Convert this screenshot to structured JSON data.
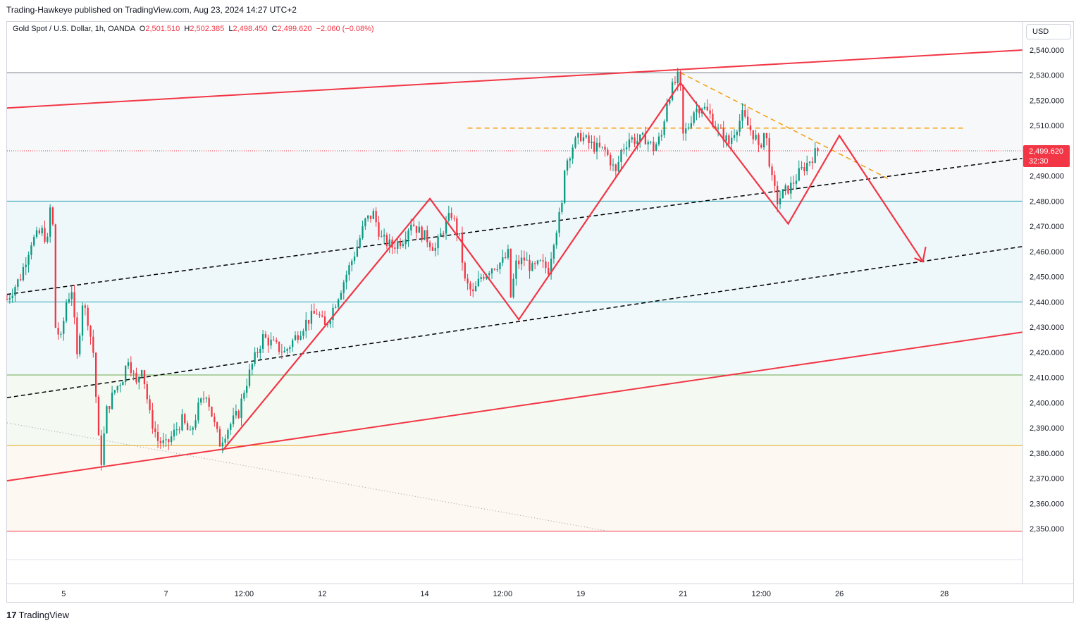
{
  "header": {
    "published_line": "Trading-Hawkeye published on TradingView.com, Aug 23, 2024 14:27 UTC+2"
  },
  "legend": {
    "symbol": "Gold Spot / U.S. Dollar, 1h, OANDA",
    "o_label": "O",
    "o_value": "2,501.510",
    "h_label": "H",
    "h_value": "2,502.385",
    "l_label": "L",
    "l_value": "2,498.450",
    "c_label": "C",
    "c_value": "2,499.620",
    "change": "−2.060 (−0.08%)"
  },
  "axis": {
    "currency_button": "USD",
    "current_price": "2,499.620",
    "countdown": "32:30"
  },
  "footer": {
    "logo_mark": "17",
    "logo_text": "TradingView"
  },
  "colors": {
    "up": "#089981",
    "down": "#f23645",
    "pattern": "#f23645",
    "channel": "#f23645",
    "dashed_mid": "#000000",
    "orange_dashed": "#f59e0b",
    "teal_line": "#26a3b5",
    "green_line": "#6aa84f",
    "gold_line": "#e6a817"
  },
  "chart_data": {
    "type": "candlestick",
    "symbol": "XAUUSD",
    "timeframe": "1h",
    "ylim": [
      2345,
      2545
    ],
    "y_ticks": [
      "2,350.000",
      "2,360.000",
      "2,370.000",
      "2,380.000",
      "2,390.000",
      "2,400.000",
      "2,410.000",
      "2,420.000",
      "2,430.000",
      "2,440.000",
      "2,450.000",
      "2,460.000",
      "2,470.000",
      "2,480.000",
      "2,490.000",
      "2,500.000",
      "2,510.000",
      "2,520.000",
      "2,530.000",
      "2,540.000"
    ],
    "y_tick_values": [
      2350,
      2360,
      2370,
      2380,
      2390,
      2400,
      2410,
      2420,
      2430,
      2440,
      2450,
      2460,
      2470,
      2480,
      2490,
      2500,
      2510,
      2520,
      2530,
      2540
    ],
    "x_tick_labels": [
      "5",
      "7",
      "12:00",
      "12",
      "14",
      "12:00",
      "19",
      "21",
      "12:00",
      "26",
      "28"
    ],
    "x_tick_bars": [
      21,
      59,
      88,
      117,
      155,
      184,
      213,
      251,
      280,
      309,
      348
    ],
    "bar_count": 377,
    "close_path": [
      [
        0,
        2441
      ],
      [
        5,
        2450
      ],
      [
        9,
        2464
      ],
      [
        13,
        2468
      ],
      [
        15,
        2464
      ],
      [
        16,
        2477
      ],
      [
        17,
        2470
      ],
      [
        18,
        2430
      ],
      [
        20,
        2425
      ],
      [
        22,
        2440
      ],
      [
        24,
        2445
      ],
      [
        26,
        2418
      ],
      [
        28,
        2440
      ],
      [
        30,
        2433
      ],
      [
        32,
        2420
      ],
      [
        34,
        2385
      ],
      [
        35,
        2377
      ],
      [
        37,
        2397
      ],
      [
        40,
        2405
      ],
      [
        43,
        2410
      ],
      [
        45,
        2418
      ],
      [
        48,
        2407
      ],
      [
        50,
        2415
      ],
      [
        53,
        2395
      ],
      [
        56,
        2385
      ],
      [
        59,
        2383
      ],
      [
        62,
        2388
      ],
      [
        65,
        2393
      ],
      [
        68,
        2387
      ],
      [
        71,
        2398
      ],
      [
        74,
        2404
      ],
      [
        77,
        2391
      ],
      [
        79,
        2384
      ],
      [
        82,
        2390
      ],
      [
        86,
        2396
      ],
      [
        88,
        2405
      ],
      [
        91,
        2415
      ],
      [
        95,
        2426
      ],
      [
        99,
        2423
      ],
      [
        103,
        2420
      ],
      [
        107,
        2426
      ],
      [
        111,
        2432
      ],
      [
        115,
        2436
      ],
      [
        118,
        2430
      ],
      [
        122,
        2440
      ],
      [
        126,
        2451
      ],
      [
        130,
        2462
      ],
      [
        133,
        2472
      ],
      [
        136,
        2475
      ],
      [
        139,
        2465
      ],
      [
        143,
        2462
      ],
      [
        147,
        2465
      ],
      [
        150,
        2472
      ],
      [
        153,
        2468
      ],
      [
        156,
        2465
      ],
      [
        159,
        2461
      ],
      [
        162,
        2469
      ],
      [
        165,
        2475
      ],
      [
        168,
        2465
      ],
      [
        170,
        2448
      ],
      [
        173,
        2443
      ],
      [
        176,
        2450
      ],
      [
        180,
        2454
      ],
      [
        184,
        2456
      ],
      [
        186,
        2459
      ],
      [
        187,
        2442
      ],
      [
        189,
        2455
      ],
      [
        192,
        2457
      ],
      [
        195,
        2453
      ],
      [
        198,
        2455
      ],
      [
        201,
        2453
      ],
      [
        203,
        2465
      ],
      [
        206,
        2478
      ],
      [
        207,
        2494
      ],
      [
        210,
        2502
      ],
      [
        213,
        2506
      ],
      [
        216,
        2503
      ],
      [
        219,
        2501
      ],
      [
        222,
        2500
      ],
      [
        224,
        2496
      ],
      [
        226,
        2491
      ],
      [
        228,
        2500
      ],
      [
        231,
        2505
      ],
      [
        234,
        2504
      ],
      [
        237,
        2505
      ],
      [
        240,
        2501
      ],
      [
        243,
        2506
      ],
      [
        245,
        2520
      ],
      [
        247,
        2525
      ],
      [
        249,
        2529
      ],
      [
        250,
        2524
      ],
      [
        251,
        2506
      ],
      [
        253,
        2510
      ],
      [
        255,
        2516
      ],
      [
        258,
        2518
      ],
      [
        261,
        2514
      ],
      [
        264,
        2508
      ],
      [
        266,
        2506
      ],
      [
        268,
        2503
      ],
      [
        270,
        2508
      ],
      [
        273,
        2514
      ],
      [
        275,
        2510
      ],
      [
        278,
        2505
      ],
      [
        279,
        2500
      ],
      [
        281,
        2507
      ],
      [
        282,
        2504
      ],
      [
        284,
        2488
      ],
      [
        286,
        2480
      ],
      [
        288,
        2483
      ],
      [
        291,
        2486
      ],
      [
        294,
        2491
      ],
      [
        297,
        2495
      ],
      [
        300,
        2499
      ],
      [
        301,
        2500
      ]
    ],
    "horizontal_levels": [
      {
        "price": 2531,
        "color": "#787b86",
        "style": "solid"
      },
      {
        "price": 2480,
        "color": "#26a3b5",
        "style": "solid"
      },
      {
        "price": 2440,
        "color": "#26a3b5",
        "style": "solid"
      },
      {
        "price": 2411,
        "color": "#6aa84f",
        "style": "solid"
      },
      {
        "price": 2383,
        "color": "#e6a817",
        "style": "solid"
      },
      {
        "price": 2349,
        "color": "#f23645",
        "style": "solid"
      },
      {
        "price": 2500,
        "color": "#f23645",
        "style": "dotted"
      }
    ],
    "trendlines": [
      {
        "name": "channel-top",
        "color": "#f23645",
        "style": "solid",
        "from": [
          0,
          2517
        ],
        "to": [
          377,
          2540
        ]
      },
      {
        "name": "channel-bottom",
        "color": "#f23645",
        "style": "solid",
        "from": [
          0,
          2369
        ],
        "to": [
          377,
          2428
        ]
      },
      {
        "name": "mid-upper",
        "color": "#000000",
        "style": "dashed",
        "from": [
          0,
          2443
        ],
        "to": [
          377,
          2497
        ]
      },
      {
        "name": "mid-lower",
        "color": "#000000",
        "style": "dashed",
        "from": [
          0,
          2402
        ],
        "to": [
          377,
          2462
        ]
      },
      {
        "name": "orange-resistance",
        "color": "#f59e0b",
        "style": "dashed",
        "from": [
          171,
          2509
        ],
        "to": [
          355,
          2509
        ]
      },
      {
        "name": "orange-down",
        "color": "#f59e0b",
        "style": "dashed",
        "from": [
          250,
          2531
        ],
        "to": [
          327,
          2489
        ]
      },
      {
        "name": "gray-dotted",
        "color": "#9598a1",
        "style": "dotted",
        "from": [
          0,
          2392
        ],
        "to": [
          223,
          2349
        ]
      }
    ],
    "pattern_path": [
      [
        80,
        2381
      ],
      [
        157,
        2481
      ],
      [
        190,
        2433
      ],
      [
        250,
        2527
      ],
      [
        290,
        2471
      ],
      [
        309,
        2506
      ],
      [
        340,
        2456
      ]
    ],
    "arrow_head": {
      "at": [
        340,
        2456
      ],
      "color": "#f23645"
    },
    "grid": false,
    "legend_position": "top-left"
  }
}
